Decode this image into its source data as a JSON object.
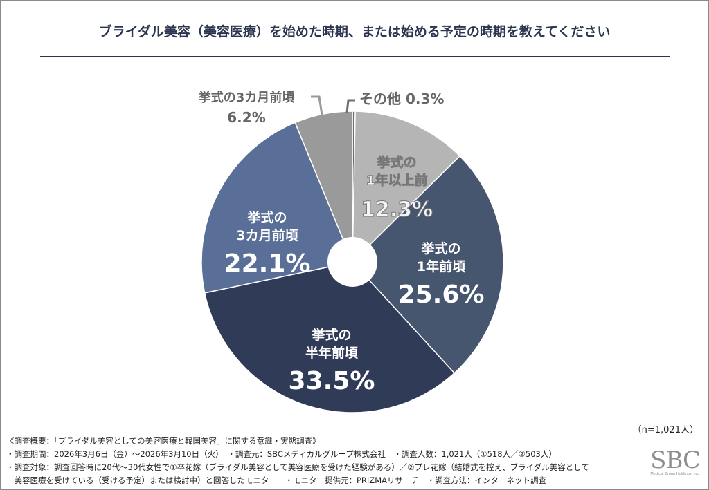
{
  "title": "ブライダル美容（美容医療）を始めた時期、または始める予定の時期を教えてください",
  "chart_data": {
    "type": "pie",
    "donut": true,
    "start": "top-clockwise",
    "slices": [
      {
        "label": "その他",
        "value": 0.3,
        "text": "0.3%",
        "color": "#6e6e6e",
        "outside": true
      },
      {
        "label": "挙式の\n1年以上前",
        "value": 12.3,
        "text": "12.3%",
        "color": "#b5b5b5"
      },
      {
        "label": "挙式の\n1年前頃",
        "value": 25.6,
        "text": "25.6%",
        "color": "#46566f"
      },
      {
        "label": "挙式の\n半年前頃",
        "value": 33.5,
        "text": "33.5%",
        "color": "#2f3b57"
      },
      {
        "label": "挙式の\n3カ月前頃",
        "value": 22.1,
        "text": "22.1%",
        "color": "#5a6f97"
      },
      {
        "label": "挙式の3カ月前頃",
        "value": 6.2,
        "text": "6.2%",
        "color": "#9a9a9a",
        "outside": true
      }
    ]
  },
  "sample": "（n=1,021人）",
  "notes": [
    "《調査概要：「ブライダル美容としての美容医療と韓国美容」に関する意識・実態調査》",
    "・調査期間：2026年3月6日（金）～2026年3月10日（火）　・調査元：SBCメディカルグループ株式会社　・調査人数：1,021人（①518人／②503人）",
    "・調査対象：調査回答時に20代～30代女性で①卒花嫁（ブライダル美容として美容医療を受けた経験がある）／②プレ花嫁（結婚式を控え、ブライダル美容として",
    "　美容医療を受けている（受ける予定）または検討中）と回答したモニター　・モニター提供元：PRIZMAリサーチ　・調査方法：インターネット調査"
  ],
  "logo": {
    "text": "SBC",
    "sub": "Medical Group Holdings, Inc."
  }
}
